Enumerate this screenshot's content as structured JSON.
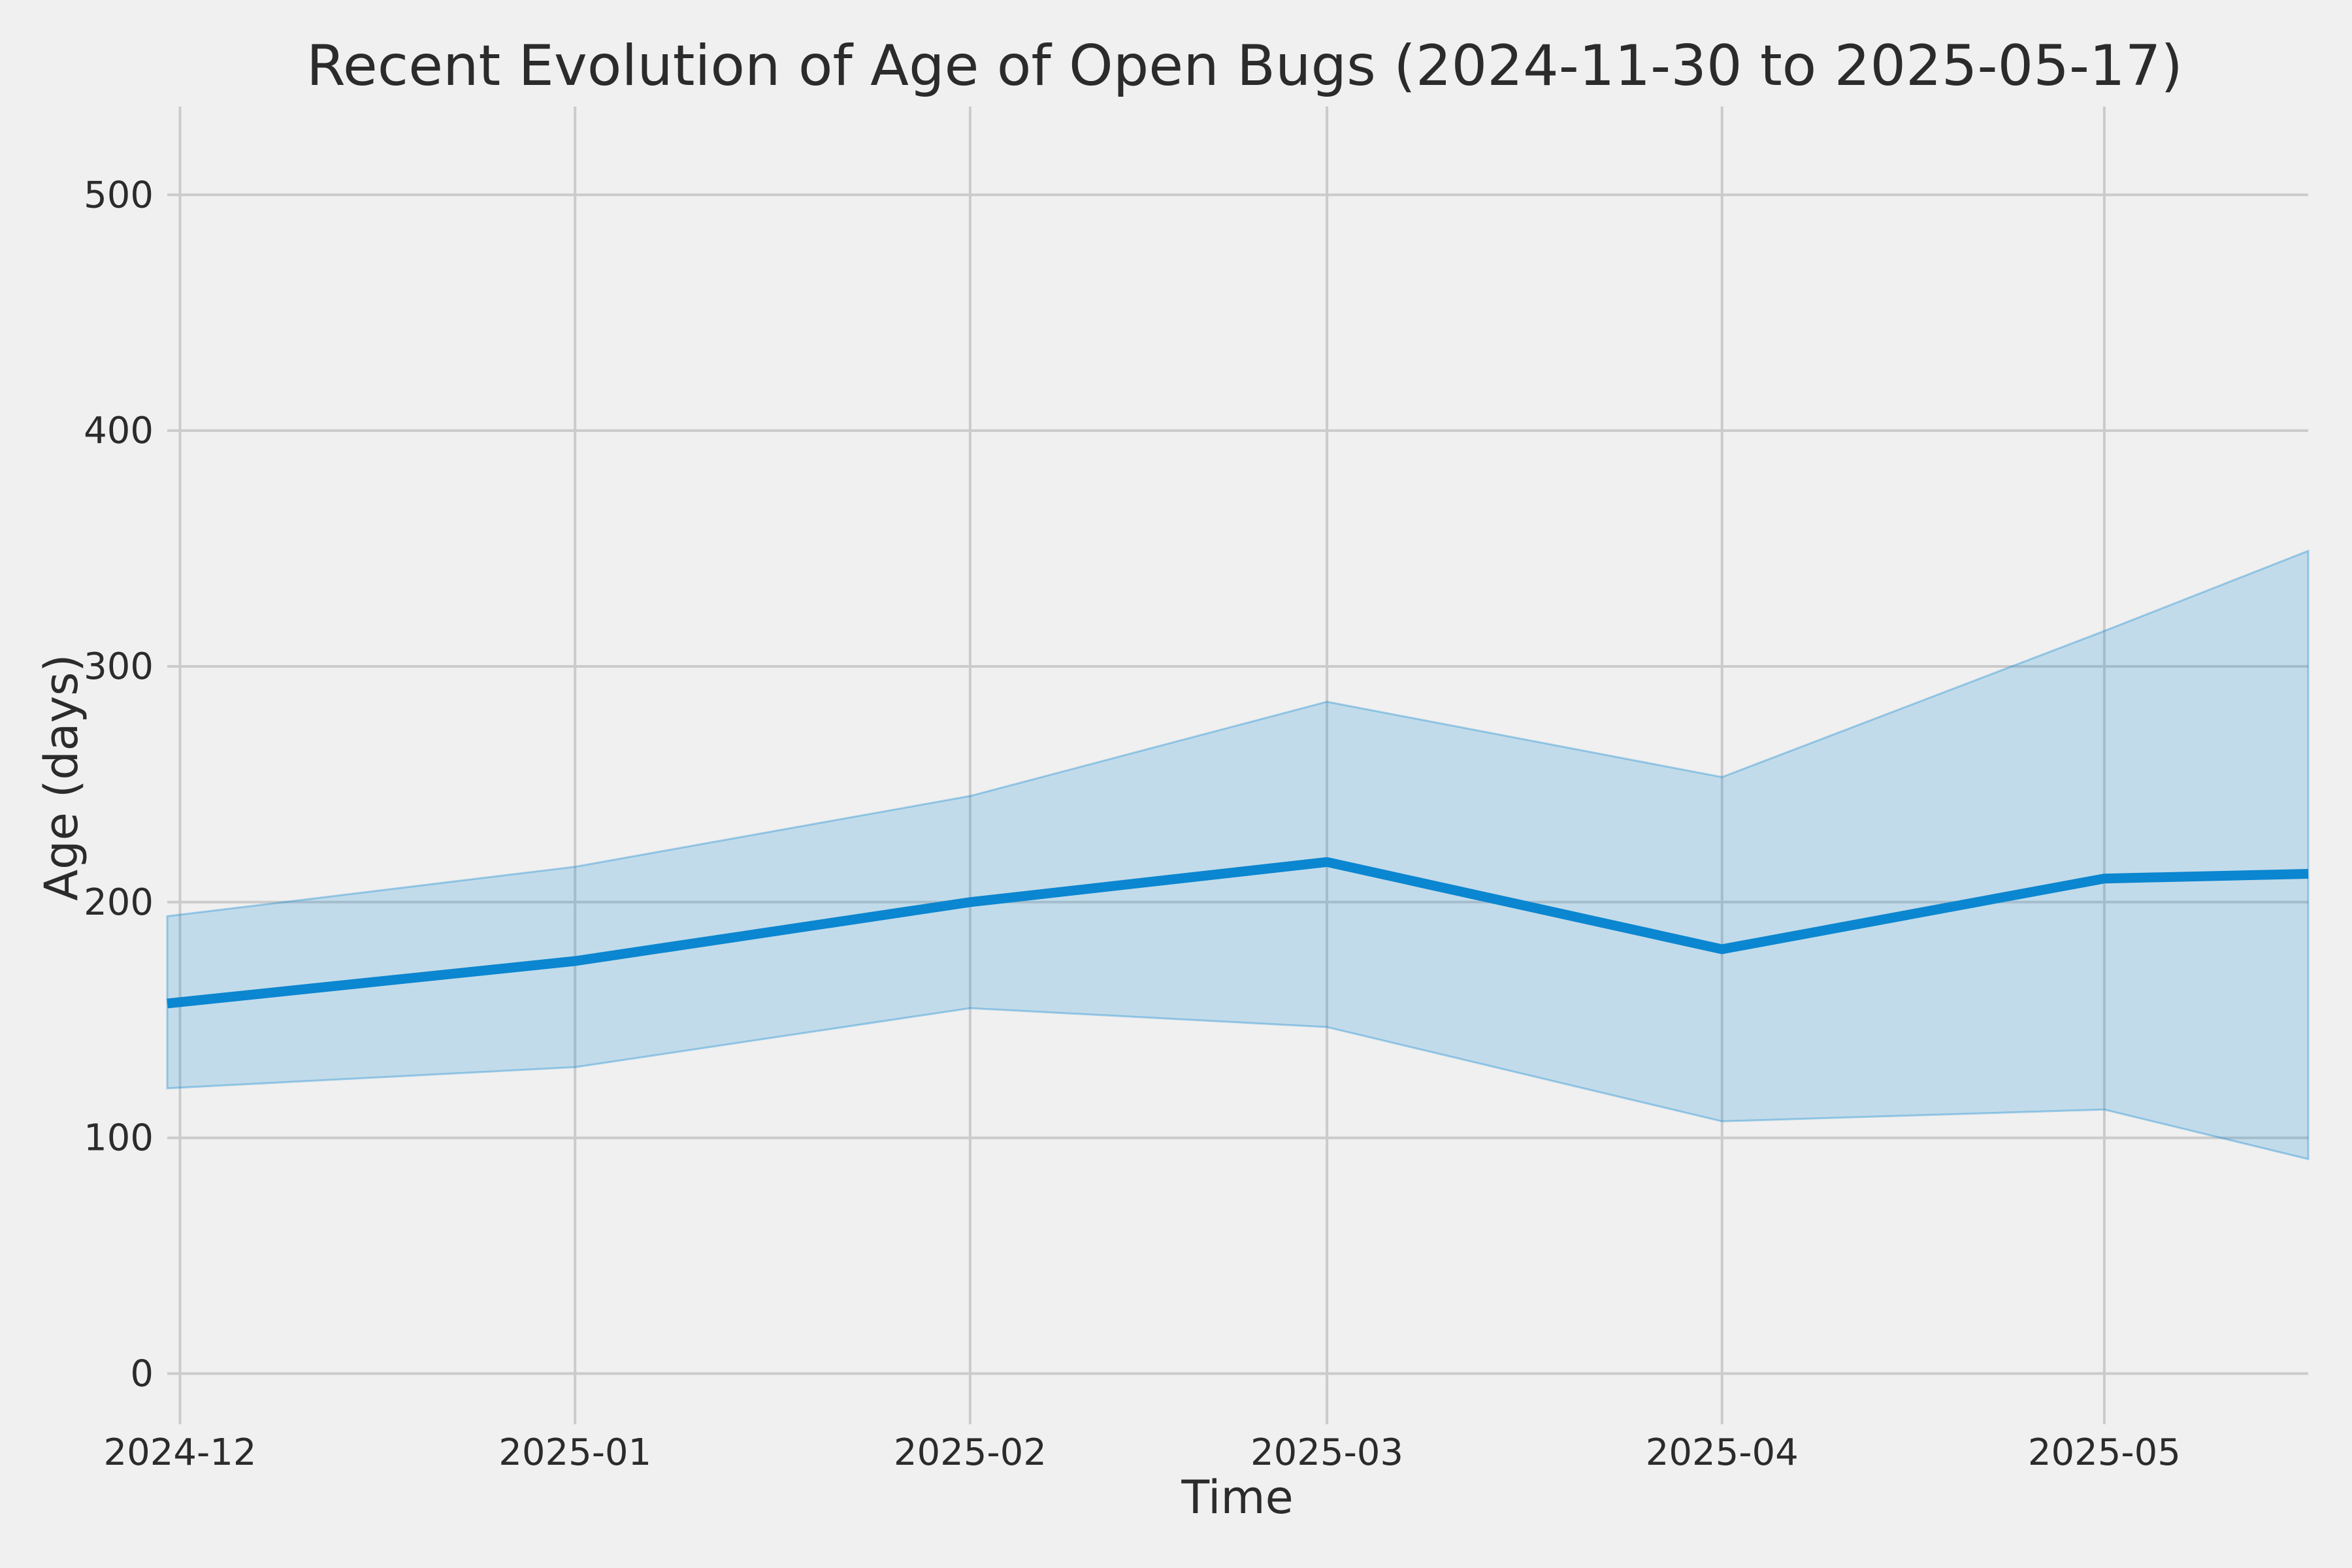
{
  "chart_data": {
    "type": "line",
    "title": "Recent Evolution of Age of Open Bugs (2024-11-30 to 2025-05-17)",
    "xlabel": "Time",
    "ylabel": "Age (days)",
    "date_range": [
      "2024-11-30",
      "2025-05-17"
    ],
    "x_dates": [
      "2024-11-30",
      "2025-01-01",
      "2025-02-01",
      "2025-03-01",
      "2025-04-01",
      "2025-05-01",
      "2025-05-17"
    ],
    "x_days": [
      0,
      32,
      63,
      91,
      122,
      152,
      168
    ],
    "series": [
      {
        "name": "mean_age_days",
        "values": [
          157,
          175,
          200,
          217,
          180,
          210,
          212
        ]
      },
      {
        "name": "band_lower_age_days",
        "values": [
          121,
          130,
          155,
          147,
          107,
          112,
          91
        ]
      },
      {
        "name": "band_upper_age_days",
        "values": [
          194,
          215,
          245,
          285,
          253,
          315,
          349
        ]
      }
    ],
    "x_ticks": [
      {
        "label": "2024-12",
        "day": 1
      },
      {
        "label": "2025-01",
        "day": 32
      },
      {
        "label": "2025-02",
        "day": 63
      },
      {
        "label": "2025-03",
        "day": 91
      },
      {
        "label": "2025-04",
        "day": 122
      },
      {
        "label": "2025-05",
        "day": 152
      }
    ],
    "y_ticks": [
      "0",
      "100",
      "200",
      "300",
      "400",
      "500"
    ],
    "y_tick_values": [
      0,
      100,
      200,
      300,
      400,
      500
    ],
    "ylim": [
      -21,
      538
    ],
    "xlim_days": [
      0,
      168
    ],
    "grid": true,
    "legend_position": "none",
    "colors": {
      "background": "#f0f0f0",
      "grid": "#cbcbcb",
      "line": "#0b86d0",
      "band_fill": "rgba(11,134,208,0.20)",
      "band_edge": "rgba(11,134,208,0.35)",
      "text": "#2b2b2b"
    }
  }
}
